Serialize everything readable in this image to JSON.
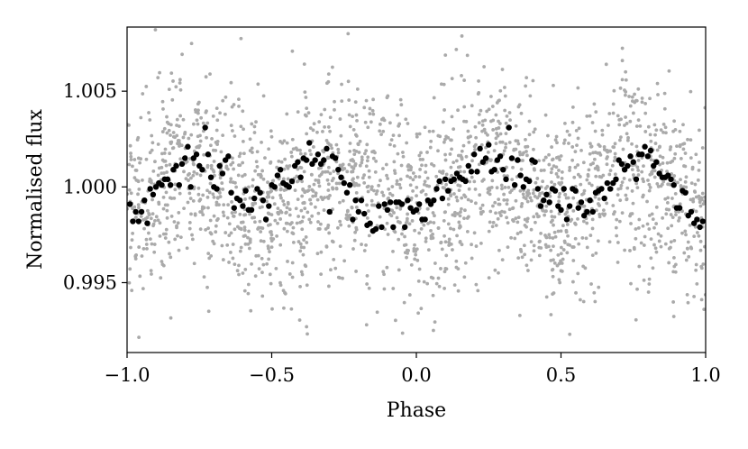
{
  "chart_data": {
    "type": "scatter",
    "title": "",
    "xlabel": "Phase",
    "ylabel": "Normalised flux",
    "xlim": [
      -1.0,
      1.0
    ],
    "ylim": [
      0.99135,
      1.00835
    ],
    "x_ticks": [
      {
        "value": -1.0,
        "label": "−1.0"
      },
      {
        "value": -0.5,
        "label": "−0.5"
      },
      {
        "value": 0.0,
        "label": "0.0"
      },
      {
        "value": 0.5,
        "label": "0.5"
      },
      {
        "value": 1.0,
        "label": "1.0"
      }
    ],
    "y_ticks": [
      {
        "value": 0.995,
        "label": "0.995"
      },
      {
        "value": 1.0,
        "label": "1.000"
      },
      {
        "value": 1.005,
        "label": "1.005"
      }
    ],
    "grid": false,
    "legend": "none",
    "colors": {
      "raw": "#aaaaaa",
      "binned": "#000000",
      "axes": "#000000"
    },
    "series": [
      {
        "role": "raw-points",
        "color": "#aaaaaa",
        "model": {
          "mean": 1.0,
          "amplitude": 0.0011,
          "period": 0.5,
          "min_phase": 0.0,
          "scatter": 0.0025,
          "points": 2200
        },
        "x": [],
        "y": []
      },
      {
        "role": "binned-points",
        "color": "#000000",
        "x": [
          -0.99,
          -0.98,
          -0.97,
          -0.96,
          -0.95,
          -0.94,
          -0.93,
          -0.92,
          -0.91,
          -0.9,
          -0.89,
          -0.88,
          -0.87,
          -0.86,
          -0.85,
          -0.84,
          -0.83,
          -0.82,
          -0.81,
          -0.8,
          -0.79,
          -0.78,
          -0.77,
          -0.76,
          -0.75,
          -0.74,
          -0.73,
          -0.72,
          -0.71,
          -0.7,
          -0.69,
          -0.68,
          -0.67,
          -0.66,
          -0.65,
          -0.64,
          -0.63,
          -0.62,
          -0.61,
          -0.6,
          -0.59,
          -0.58,
          -0.57,
          -0.56,
          -0.55,
          -0.54,
          -0.53,
          -0.52,
          -0.51,
          -0.5,
          -0.49,
          -0.48,
          -0.47,
          -0.46,
          -0.45,
          -0.44,
          -0.43,
          -0.42,
          -0.41,
          -0.4,
          -0.39,
          -0.38,
          -0.37,
          -0.36,
          -0.35,
          -0.34,
          -0.33,
          -0.32,
          -0.31,
          -0.3,
          -0.29,
          -0.28,
          -0.27,
          -0.26,
          -0.25,
          -0.24,
          -0.23,
          -0.22,
          -0.21,
          -0.2,
          -0.19,
          -0.18,
          -0.17,
          -0.16,
          -0.15,
          -0.14,
          -0.13,
          -0.12,
          -0.11,
          -0.1,
          -0.09,
          -0.08,
          -0.07,
          -0.06,
          -0.05,
          -0.04,
          -0.03,
          -0.02,
          -0.01,
          0.0,
          0.01,
          0.02,
          0.03,
          0.04,
          0.05,
          0.06,
          0.07,
          0.08,
          0.09,
          0.1,
          0.11,
          0.12,
          0.13,
          0.14,
          0.15,
          0.16,
          0.17,
          0.18,
          0.19,
          0.2,
          0.21,
          0.22,
          0.23,
          0.24,
          0.25,
          0.26,
          0.27,
          0.28,
          0.29,
          0.3,
          0.31,
          0.32,
          0.33,
          0.34,
          0.35,
          0.36,
          0.37,
          0.38,
          0.39,
          0.4,
          0.41,
          0.42,
          0.43,
          0.44,
          0.45,
          0.46,
          0.47,
          0.48,
          0.49,
          0.5,
          0.51,
          0.52,
          0.53,
          0.54,
          0.55,
          0.56,
          0.57,
          0.58,
          0.59,
          0.6,
          0.61,
          0.62,
          0.63,
          0.64,
          0.65,
          0.66,
          0.67,
          0.68,
          0.69,
          0.7,
          0.71,
          0.72,
          0.73,
          0.74,
          0.75,
          0.76,
          0.77,
          0.78,
          0.79,
          0.8,
          0.81,
          0.82,
          0.83,
          0.84,
          0.85,
          0.86,
          0.87,
          0.88,
          0.89,
          0.9,
          0.91,
          0.92,
          0.93,
          0.94,
          0.95,
          0.96,
          0.97,
          0.98,
          0.99
        ],
        "y": [
          0.9991,
          0.9982,
          0.9987,
          0.9982,
          0.9987,
          0.9993,
          0.9981,
          0.9999,
          0.9996,
          1.0,
          1.0002,
          1.0001,
          1.0004,
          1.0004,
          1.0001,
          1.0009,
          1.0011,
          1.0001,
          1.0012,
          1.0015,
          1.0021,
          1.0,
          1.0015,
          1.0017,
          1.0011,
          1.0009,
          1.0031,
          1.0017,
          1.0005,
          1.0,
          0.9999,
          1.0011,
          1.0007,
          1.0014,
          1.0016,
          0.9997,
          0.9989,
          0.9994,
          0.9993,
          0.999,
          0.9998,
          0.9988,
          0.9988,
          0.9994,
          0.9999,
          0.9997,
          0.9993,
          0.9983,
          0.999,
          1.0001,
          1.0,
          1.0006,
          1.0009,
          1.0002,
          1.0001,
          1.0,
          1.0003,
          1.0011,
          1.0013,
          1.0005,
          1.0015,
          1.0014,
          1.0023,
          1.0012,
          1.0014,
          1.0017,
          1.0012,
          1.0014,
          1.002,
          0.9987,
          1.0016,
          1.0015,
          1.0009,
          1.0005,
          1.0002,
          0.9997,
          1.0001,
          0.9983,
          0.9993,
          0.9987,
          0.9993,
          0.9986,
          0.998,
          0.9981,
          0.9977,
          0.9978,
          0.999,
          0.9979,
          0.9991,
          0.9988,
          0.9992,
          0.9979,
          0.9992,
          0.9992,
          0.9991,
          0.9979,
          0.9993,
          0.9989,
          0.9987,
          0.9988,
          0.9991,
          0.9983,
          0.9983,
          0.9993,
          0.9991,
          0.9993,
          0.9999,
          1.0003,
          0.9994,
          1.0004,
          0.9998,
          1.0003,
          1.0004,
          1.0007,
          1.0005,
          1.0004,
          1.0003,
          1.0011,
          1.0008,
          1.0017,
          1.0008,
          1.002,
          1.0013,
          1.0015,
          1.0022,
          1.0008,
          1.0009,
          1.0014,
          1.0016,
          1.0009,
          1.0004,
          1.0031,
          1.0015,
          1.0001,
          1.0014,
          1.0006,
          1.0,
          1.0004,
          1.0003,
          1.0014,
          1.0013,
          0.9999,
          0.999,
          0.9993,
          0.9996,
          0.9992,
          0.9999,
          0.9998,
          0.999,
          0.9988,
          0.9999,
          0.9983,
          0.999,
          0.9999,
          0.9998,
          0.9989,
          0.9992,
          0.9985,
          0.9987,
          0.9993,
          0.9987,
          0.9997,
          0.9998,
          0.9999,
          0.9994,
          1.0002,
          0.9999,
          1.0002,
          1.0004,
          1.0014,
          1.0012,
          1.0009,
          1.0011,
          1.0016,
          1.0013,
          1.0004,
          1.0017,
          1.0017,
          1.0021,
          1.0016,
          1.0019,
          1.0011,
          1.0013,
          1.0007,
          1.0005,
          1.0005,
          1.0006,
          1.0004,
          1.0001,
          0.9989,
          0.9989,
          0.9998,
          0.9997,
          0.9985,
          0.9987,
          0.9981,
          0.9983,
          0.9979,
          0.9982
        ]
      }
    ]
  }
}
